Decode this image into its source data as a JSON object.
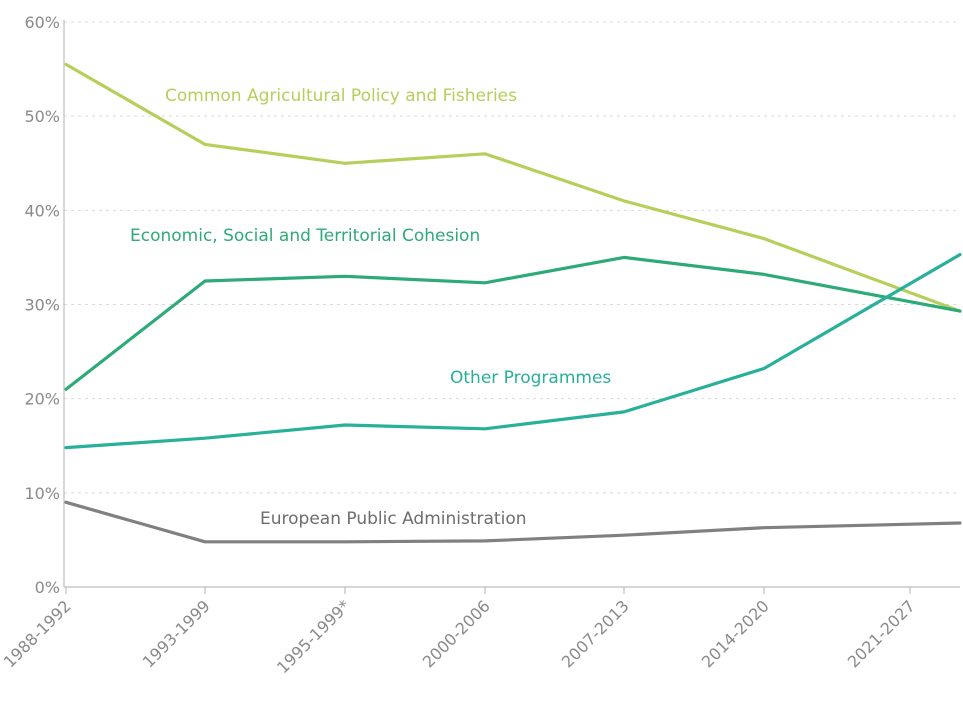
{
  "chart_data": {
    "type": "line",
    "title": "",
    "xlabel": "",
    "ylabel": "",
    "categories": [
      "1988-1992",
      "1993-1999",
      "1995-1999*",
      "2000-2006",
      "2007-2013",
      "2014-2020",
      "2021-2027"
    ],
    "ylim": [
      0,
      60
    ],
    "yticks": [
      0,
      10,
      20,
      30,
      40,
      50,
      60
    ],
    "ytick_labels": [
      "0%",
      "10%",
      "20%",
      "30%",
      "40%",
      "50%",
      "60%"
    ],
    "grid": true,
    "legend": "inline labels",
    "series": [
      {
        "name": "Common Agricultural Policy and Fisheries",
        "color": "#b5cf5a",
        "values": [
          55.5,
          47,
          45,
          46,
          41,
          37,
          29.3
        ]
      },
      {
        "name": "Economic, Social and Territorial Cohesion",
        "color": "#2eaa78",
        "values": [
          21,
          32.5,
          33,
          32.3,
          35,
          33.2,
          29.3
        ]
      },
      {
        "name": "Other Programmes",
        "color": "#28b09a",
        "values": [
          14.8,
          15.8,
          17.2,
          16.8,
          18.6,
          23.2,
          35.3
        ]
      },
      {
        "name": "European Public Administration",
        "color": "#808080",
        "values": [
          9,
          4.8,
          4.8,
          4.9,
          5.5,
          6.3,
          6.8
        ]
      }
    ]
  }
}
